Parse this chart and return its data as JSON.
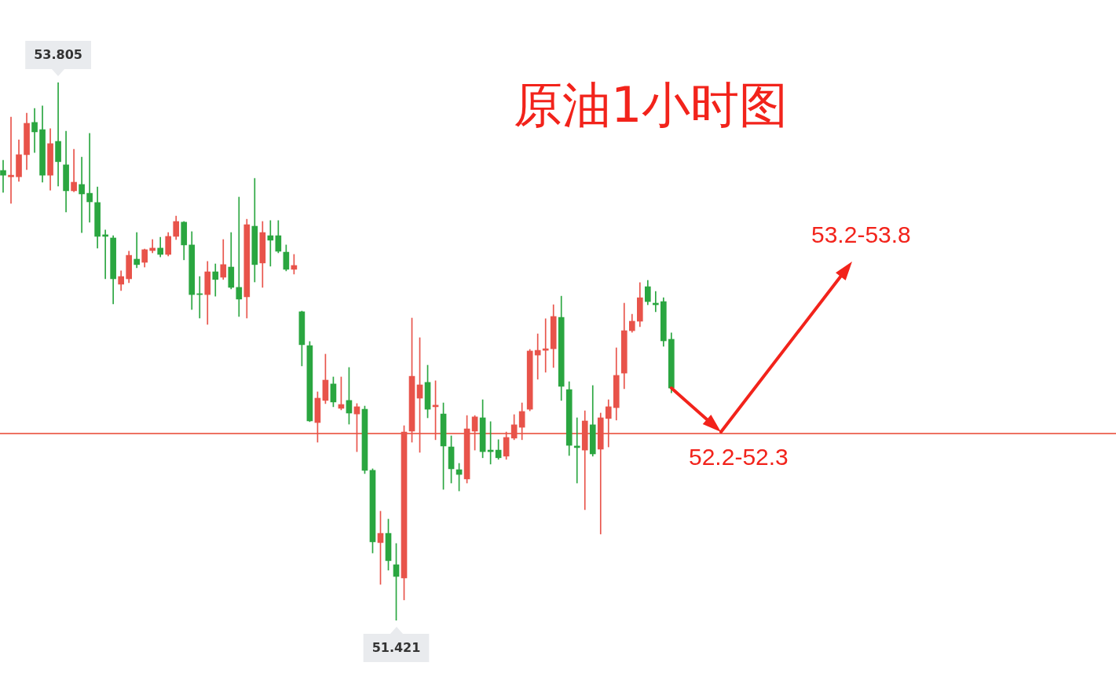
{
  "chart_data": {
    "type": "candlestick",
    "title": "原油1小时图",
    "categories": [
      null,
      null,
      null,
      null,
      null,
      null,
      null,
      null,
      null,
      null,
      null,
      null,
      null,
      null,
      null,
      null,
      null,
      null,
      null,
      null,
      null,
      null,
      null,
      null,
      null,
      null,
      null,
      null,
      null,
      null,
      null,
      null,
      null,
      null,
      null,
      null,
      null,
      null,
      null,
      null,
      null,
      null,
      null,
      null,
      null,
      null,
      null,
      null,
      null,
      null,
      null,
      null,
      null,
      null,
      null,
      null,
      null,
      null,
      null,
      null,
      null,
      null,
      null,
      null,
      null,
      null,
      null,
      null,
      null,
      null,
      null,
      null,
      null,
      null,
      null,
      null,
      null,
      null,
      null,
      null,
      null,
      null,
      null,
      null,
      null,
      null
    ],
    "ohlc": [
      [
        53.415,
        53.46,
        53.318,
        53.394
      ],
      [
        53.387,
        53.652,
        53.269,
        53.394
      ],
      [
        53.387,
        53.551,
        53.367,
        53.485
      ],
      [
        53.485,
        53.669,
        53.419,
        53.624
      ],
      [
        53.628,
        53.69,
        53.495,
        53.586
      ],
      [
        53.596,
        53.701,
        53.363,
        53.394
      ],
      [
        53.394,
        53.6,
        53.328,
        53.534
      ],
      [
        53.544,
        53.805,
        53.346,
        53.454
      ],
      [
        53.44,
        53.589,
        53.231,
        53.325
      ],
      [
        53.325,
        53.509,
        53.321,
        53.363
      ],
      [
        53.353,
        53.474,
        53.14,
        53.311
      ],
      [
        53.314,
        53.579,
        53.186,
        53.276
      ],
      [
        53.273,
        53.342,
        53.071,
        53.123
      ],
      [
        53.13,
        53.151,
        52.935,
        53.123
      ],
      [
        53.116,
        53.126,
        52.824,
        52.935
      ],
      [
        52.911,
        52.97,
        52.883,
        52.945
      ],
      [
        52.935,
        53.057,
        52.918,
        53.039
      ],
      [
        53.022,
        53.14,
        52.984,
        52.998
      ],
      [
        53.008,
        53.067,
        52.987,
        53.064
      ],
      [
        53.06,
        53.109,
        53.05,
        53.071
      ],
      [
        53.071,
        53.119,
        53.032,
        53.043
      ],
      [
        53.043,
        53.14,
        53.036,
        53.123
      ],
      [
        53.123,
        53.213,
        53.109,
        53.189
      ],
      [
        53.186,
        53.189,
        53.019,
        53.085
      ],
      [
        53.085,
        53.144,
        52.799,
        52.865
      ],
      [
        52.869,
        52.945,
        52.761,
        52.865
      ],
      [
        52.865,
        53.012,
        52.733,
        52.966
      ],
      [
        52.966,
        53.001,
        52.858,
        52.932
      ],
      [
        52.942,
        53.109,
        52.932,
        52.998
      ],
      [
        52.987,
        53.14,
        52.89,
        52.897
      ],
      [
        52.897,
        53.297,
        52.768,
        52.845
      ],
      [
        52.855,
        53.199,
        52.761,
        53.175
      ],
      [
        53.168,
        53.38,
        52.921,
        52.998
      ],
      [
        53.005,
        53.189,
        52.897,
        53.14
      ],
      [
        53.126,
        53.193,
        52.991,
        53.106
      ],
      [
        53.126,
        53.193,
        53.05,
        53.057
      ],
      [
        53.053,
        53.085,
        52.97,
        52.977
      ],
      [
        52.977,
        53.043,
        52.956,
        52.994
      ],
      [
        52.789,
        52.792,
        52.549,
        52.643
      ],
      [
        52.639,
        52.657,
        52.302,
        52.305
      ],
      [
        52.298,
        52.434,
        52.211,
        52.406
      ],
      [
        52.396,
        52.601,
        52.382,
        52.486
      ],
      [
        52.469,
        52.5,
        52.368,
        52.389
      ],
      [
        52.361,
        52.5,
        52.354,
        52.378
      ],
      [
        52.396,
        52.542,
        52.291,
        52.34
      ],
      [
        52.336,
        52.382,
        52.169,
        52.368
      ],
      [
        52.357,
        52.371,
        52.072,
        52.086
      ],
      [
        52.086,
        52.093,
        51.72,
        51.769
      ],
      [
        51.766,
        51.905,
        51.581,
        51.807
      ],
      [
        51.807,
        51.87,
        51.644,
        51.686
      ],
      [
        51.668,
        51.762,
        51.421,
        51.616
      ],
      [
        51.609,
        52.284,
        51.512,
        52.256
      ],
      [
        52.26,
        52.761,
        52.211,
        52.503
      ],
      [
        52.406,
        52.674,
        52.166,
        52.465
      ],
      [
        52.476,
        52.552,
        52.319,
        52.357
      ],
      [
        52.368,
        52.483,
        52.222,
        52.375
      ],
      [
        52.336,
        52.385,
        52.002,
        52.194
      ],
      [
        52.19,
        52.239,
        52.03,
        52.093
      ],
      [
        52.089,
        52.117,
        51.995,
        52.068
      ],
      [
        52.048,
        52.329,
        52.03,
        52.27
      ],
      [
        52.26,
        52.329,
        52.176,
        52.323
      ],
      [
        52.319,
        52.399,
        52.142,
        52.169
      ],
      [
        52.176,
        52.302,
        52.114,
        52.169
      ],
      [
        52.176,
        52.222,
        52.135,
        52.142
      ],
      [
        52.149,
        52.256,
        52.135,
        52.232
      ],
      [
        52.229,
        52.333,
        52.222,
        52.288
      ],
      [
        52.277,
        52.385,
        52.222,
        52.347
      ],
      [
        52.357,
        52.622,
        52.35,
        52.615
      ],
      [
        52.597,
        52.691,
        52.49,
        52.618
      ],
      [
        52.618,
        52.758,
        52.521,
        52.625
      ],
      [
        52.625,
        52.82,
        52.542,
        52.768
      ],
      [
        52.764,
        52.858,
        52.396,
        52.458
      ],
      [
        52.444,
        52.479,
        52.152,
        52.197
      ],
      [
        52.194,
        52.319,
        52.03,
        52.187
      ],
      [
        52.176,
        52.35,
        51.912,
        52.305
      ],
      [
        52.288,
        52.462,
        52.149,
        52.159
      ],
      [
        52.18,
        52.34,
        51.804,
        52.319
      ],
      [
        52.316,
        52.399,
        52.19,
        52.368
      ],
      [
        52.364,
        52.629,
        52.309,
        52.507
      ],
      [
        52.517,
        52.827,
        52.448,
        52.705
      ],
      [
        52.705,
        52.778,
        52.698,
        52.747
      ],
      [
        52.747,
        52.918,
        52.723,
        52.851
      ],
      [
        52.9,
        52.928,
        52.82,
        52.834
      ],
      [
        52.827,
        52.879,
        52.789,
        52.82
      ],
      [
        52.834,
        52.851,
        52.636,
        52.66
      ],
      [
        52.667,
        52.695,
        52.43,
        52.451
      ]
    ],
    "ref_lines": [
      {
        "axis": "y",
        "value": 52.249,
        "color": "#e8432f"
      }
    ],
    "annotations": [
      "52.2-52.3",
      "53.2-53.8",
      {
        "text": "53.805",
        "y": 53.805
      },
      {
        "text": "51.421",
        "y": 51.421
      }
    ]
  }
}
